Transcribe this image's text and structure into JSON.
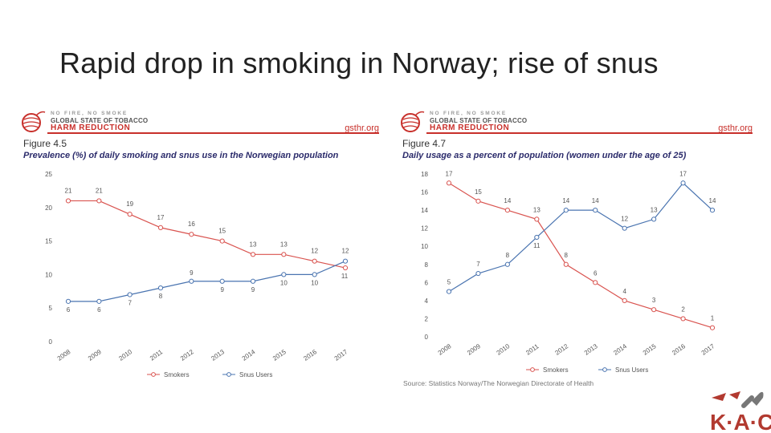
{
  "slide": {
    "title": "Rapid drop in smoking in Norway; rise of snus"
  },
  "brand": {
    "tagline": "NO FIRE, NO SMOKE",
    "line2": "GLOBAL STATE OF TOBACCO",
    "line3": "HARM REDUCTION",
    "site": "gsthr.org",
    "accent": "#c8302b"
  },
  "figures": [
    {
      "figure_label": "Figure 4.5",
      "caption": "Prevalence (%) of daily smoking and snus use in the Norwegian population",
      "source": ""
    },
    {
      "figure_label": "Figure 4.7",
      "caption": "Daily usage as a percent of population (women under the age of 25)",
      "source": "Source: Statistics Norway/The Norwegian Directorate of Health"
    }
  ],
  "chart_data": [
    {
      "type": "line",
      "title": "Prevalence (%) of daily smoking and snus use in the Norwegian population",
      "categories": [
        "2008",
        "2009",
        "2010",
        "2011",
        "2012",
        "2013",
        "2014",
        "2015",
        "2016",
        "2017"
      ],
      "ylim": [
        0,
        25
      ],
      "yticks": [
        "0",
        "5",
        "10",
        "15",
        "20",
        "25"
      ],
      "grid": false,
      "legend": "bottom",
      "series": [
        {
          "name": "Smokers",
          "color": "#d9534f",
          "values": [
            21,
            21,
            19,
            17,
            16,
            15,
            13,
            13,
            12,
            11
          ],
          "labels": [
            "21",
            "21",
            "19",
            "17",
            "16",
            "15",
            "13",
            "13",
            "12",
            "11"
          ]
        },
        {
          "name": "Snus Users",
          "color": "#4a74b0",
          "values": [
            6,
            6,
            7,
            8,
            9,
            9,
            9,
            10,
            10,
            12
          ],
          "labels": [
            "6",
            "6",
            "7",
            "8",
            "9",
            "9",
            "9",
            "10",
            "10",
            "12"
          ]
        }
      ]
    },
    {
      "type": "line",
      "title": "Daily usage as a percent of population (women under the age of 25)",
      "categories": [
        "2008",
        "2009",
        "2010",
        "2011",
        "2012",
        "2013",
        "2014",
        "2015",
        "2016",
        "2017"
      ],
      "ylim": [
        0,
        18
      ],
      "yticks": [
        "0",
        "2",
        "4",
        "6",
        "8",
        "10",
        "12",
        "14",
        "16",
        "18"
      ],
      "grid": false,
      "legend": "bottom",
      "series": [
        {
          "name": "Smokers",
          "color": "#d9534f",
          "values": [
            17,
            15,
            14,
            13,
            8,
            6,
            4,
            3,
            2,
            1
          ],
          "labels": [
            "17",
            "15",
            "14",
            "13",
            "8",
            "6",
            "4",
            "3",
            "2",
            "1"
          ]
        },
        {
          "name": "Snus Users",
          "color": "#4a74b0",
          "values": [
            5,
            7,
            8,
            11,
            14,
            14,
            12,
            13,
            17,
            14
          ],
          "labels": [
            "5",
            "7",
            "8",
            "11",
            "14",
            "14",
            "12",
            "13",
            "17",
            "14"
          ]
        }
      ]
    }
  ],
  "footer_logo": {
    "text": "K·A·C"
  }
}
